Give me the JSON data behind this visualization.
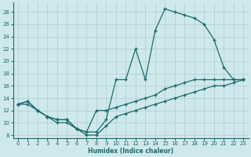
{
  "xlabel": "Humidex (Indice chaleur)",
  "bg_color": "#cfe8ec",
  "line_color": "#1a6b6b",
  "grid_color": "#aacdd4",
  "xlim": [
    -0.5,
    23.5
  ],
  "ylim": [
    7.5,
    29.5
  ],
  "xticks": [
    0,
    1,
    2,
    3,
    4,
    5,
    6,
    7,
    8,
    9,
    10,
    11,
    12,
    13,
    14,
    15,
    16,
    17,
    18,
    19,
    20,
    21,
    22,
    23
  ],
  "yticks": [
    8,
    10,
    12,
    14,
    16,
    18,
    20,
    22,
    24,
    26,
    28
  ],
  "upper_x": [
    0,
    1,
    2,
    3,
    4,
    5,
    6,
    7,
    8,
    9,
    10,
    11,
    12,
    13,
    14,
    15,
    16,
    17,
    18,
    19,
    20,
    21,
    22,
    23
  ],
  "upper_y": [
    13,
    13.5,
    12,
    11,
    10.5,
    10.5,
    9,
    8.5,
    8.5,
    10.5,
    17,
    17,
    22,
    17,
    25,
    28.5,
    28,
    27.5,
    27,
    26,
    23.5,
    19,
    17,
    17
  ],
  "mid_x": [
    0,
    1,
    2,
    3,
    4,
    5,
    6,
    7,
    8,
    9,
    10,
    11,
    12,
    13,
    14,
    15,
    16,
    17,
    18,
    19,
    20,
    21,
    22,
    23
  ],
  "mid_y": [
    13,
    13.5,
    12,
    11,
    10.5,
    10.5,
    9,
    8.5,
    12,
    12,
    12.5,
    13,
    13.5,
    14,
    14.5,
    15.5,
    16,
    16.5,
    17,
    17,
    17,
    17,
    17,
    17
  ],
  "low_x": [
    0,
    1,
    2,
    3,
    4,
    5,
    6,
    7,
    8,
    9,
    10,
    11,
    12,
    13,
    14,
    15,
    16,
    17,
    18,
    19,
    20,
    21,
    22,
    23
  ],
  "low_y": [
    13,
    13,
    12,
    11,
    10,
    10,
    9,
    8,
    8,
    9.5,
    11,
    11.5,
    12,
    12.5,
    13,
    13.5,
    14,
    14.5,
    15,
    15.5,
    16,
    16,
    16.5,
    17
  ]
}
